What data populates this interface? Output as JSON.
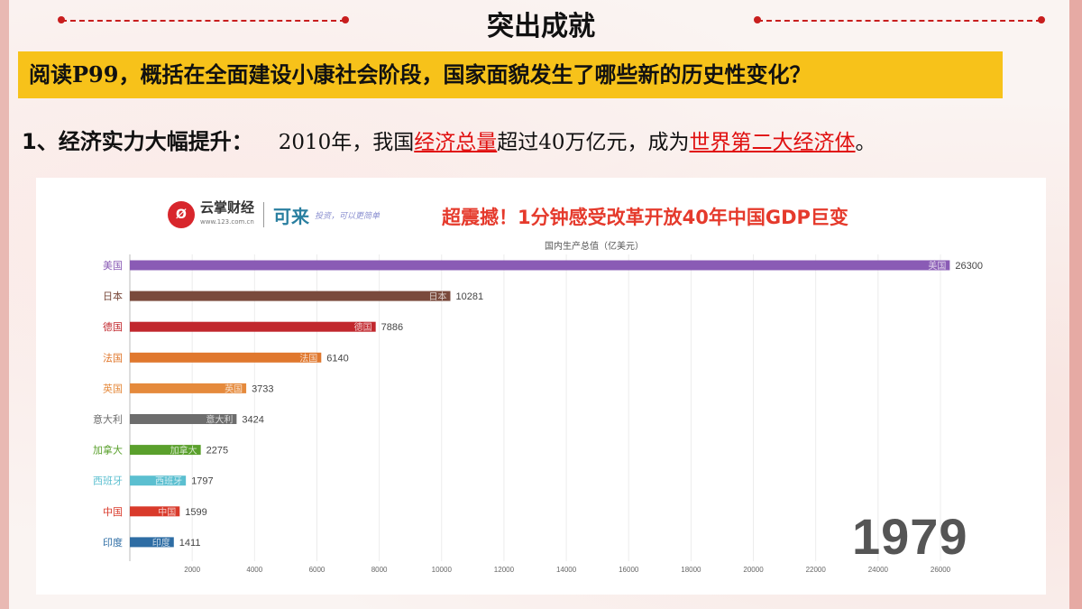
{
  "slide": {
    "title": "突出成就",
    "question": "阅读P99，概括在全面建设小康社会阶段，国家面貌发生了哪些新的历史性变化？",
    "point": {
      "heading": "1、经济实力大幅提升：",
      "text_1": "2010年，我国",
      "highlight_1": "经济总量",
      "text_2": "超过40万亿元，成为",
      "highlight_2": "世界第二大经济体",
      "text_3": "。"
    }
  },
  "branding": {
    "logo_mark": "Ø",
    "logo_name": "云掌财经",
    "logo_url": "www.123.com.cn",
    "brand": "可来",
    "slogan": "投资，可以更简单"
  },
  "chart_data": {
    "type": "bar",
    "orientation": "horizontal",
    "title": "超震撼！1分钟感受改革开放40年中国GDP巨变",
    "subtitle": "国内生产总值（亿美元）",
    "year": "1979",
    "categories": [
      "美国",
      "日本",
      "德国",
      "法国",
      "英国",
      "意大利",
      "加拿大",
      "西班牙",
      "中国",
      "印度"
    ],
    "values": [
      26300,
      10281,
      7886,
      6140,
      3733,
      3424,
      2275,
      1797,
      1599,
      1411
    ],
    "colors": [
      "#8a5bb5",
      "#7a4a3c",
      "#c1272d",
      "#e0782e",
      "#e58a3c",
      "#6d6d6d",
      "#5aa02c",
      "#5bbfd0",
      "#d93a2b",
      "#2e6da4"
    ],
    "x_ticks": [
      2000,
      4000,
      6000,
      8000,
      10000,
      12000,
      14000,
      16000,
      18000,
      20000,
      22000,
      24000,
      26000
    ],
    "xlim": [
      0,
      26300
    ],
    "grid": true
  }
}
